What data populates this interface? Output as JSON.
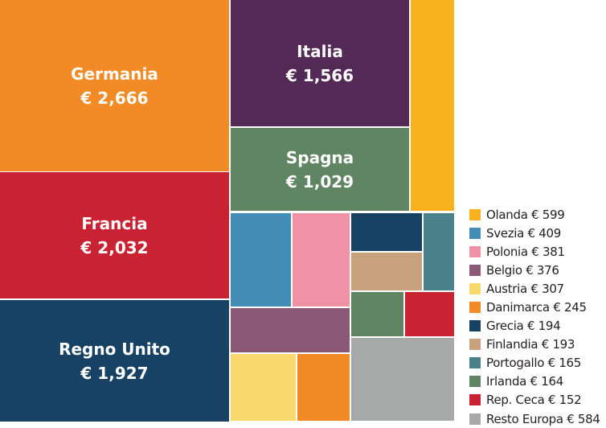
{
  "chart_data": {
    "type": "treemap",
    "currency": "€",
    "items": [
      {
        "name": "Germania",
        "value": 2666,
        "label": "€ 2,666",
        "color": "#F28A26"
      },
      {
        "name": "Francia",
        "value": 2032,
        "label": "€ 2,032",
        "color": "#C92333"
      },
      {
        "name": "Regno Unito",
        "value": 1927,
        "label": "€ 1,927",
        "color": "#184263"
      },
      {
        "name": "Italia",
        "value": 1566,
        "label": "€ 1,566",
        "color": "#532A55"
      },
      {
        "name": "Spagna",
        "value": 1029,
        "label": "€ 1,029",
        "color": "#608562"
      },
      {
        "name": "Olanda",
        "value": 599,
        "label": "Olanda € 599",
        "color": "#F9B21D"
      },
      {
        "name": "Svezia",
        "value": 409,
        "label": "Svezia € 409",
        "color": "#438CB5"
      },
      {
        "name": "Polonia",
        "value": 381,
        "label": "Polonia € 381",
        "color": "#F092A5"
      },
      {
        "name": "Belgio",
        "value": 376,
        "label": "Belgio € 376",
        "color": "#8B5878"
      },
      {
        "name": "Austria",
        "value": 307,
        "label": "Austria € 307",
        "color": "#F8D96C"
      },
      {
        "name": "Danimarca",
        "value": 245,
        "label": "Danimarca € 245",
        "color": "#F28A26"
      },
      {
        "name": "Grecia",
        "value": 194,
        "label": "Grecia € 194",
        "color": "#184263"
      },
      {
        "name": "Finlandia",
        "value": 193,
        "label": "Finlandia € 193",
        "color": "#C8A27C"
      },
      {
        "name": "Portogallo",
        "value": 165,
        "label": "Portogallo € 165",
        "color": "#4A818A"
      },
      {
        "name": "Irlanda",
        "value": 164,
        "label": "Irlanda € 164",
        "color": "#608562"
      },
      {
        "name": "Rep. Ceca",
        "value": 152,
        "label": "Rep. Ceca € 152",
        "color": "#C92333"
      },
      {
        "name": "Resto Europa",
        "value": 584,
        "label": "Resto Europa € 584",
        "color": "#A7A9A8"
      }
    ]
  }
}
